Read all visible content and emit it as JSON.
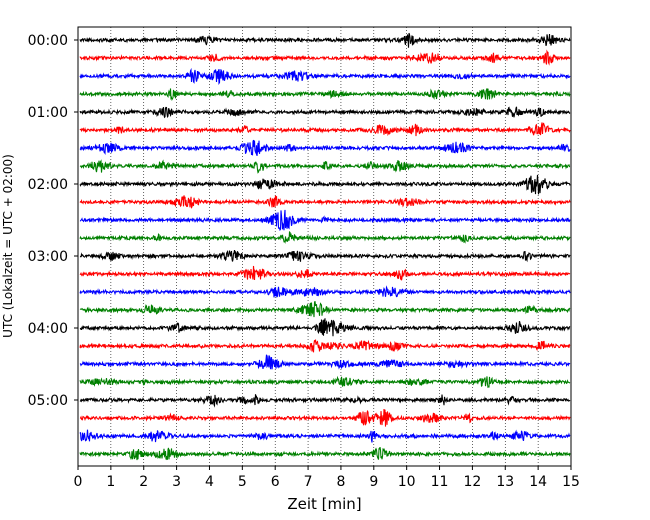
{
  "chart_data": {
    "type": "line",
    "title": "",
    "xlabel": "Zeit  [min]",
    "ylabel": "UTC (Lokalzeit = UTC + 02:00)",
    "xlim": [
      0,
      15
    ],
    "x_ticks": [
      "0",
      "1",
      "2",
      "3",
      "4",
      "5",
      "6",
      "7",
      "8",
      "9",
      "10",
      "11",
      "12",
      "13",
      "14",
      "15"
    ],
    "y_tick_labels": [
      "00:00",
      "01:00",
      "02:00",
      "03:00",
      "04:00",
      "05:00"
    ],
    "grid": "vertical-dotted",
    "minutes_per_trace": 15,
    "colors": [
      "#000000",
      "#ff0000",
      "#0000ff",
      "#008000"
    ],
    "traces": [
      {
        "start": "00:00",
        "color": "#000000"
      },
      {
        "start": "00:15",
        "color": "#ff0000"
      },
      {
        "start": "00:30",
        "color": "#0000ff"
      },
      {
        "start": "00:45",
        "color": "#008000"
      },
      {
        "start": "01:00",
        "color": "#000000"
      },
      {
        "start": "01:15",
        "color": "#ff0000"
      },
      {
        "start": "01:30",
        "color": "#0000ff"
      },
      {
        "start": "01:45",
        "color": "#008000"
      },
      {
        "start": "02:00",
        "color": "#000000"
      },
      {
        "start": "02:15",
        "color": "#ff0000"
      },
      {
        "start": "02:30",
        "color": "#0000ff"
      },
      {
        "start": "02:45",
        "color": "#008000"
      },
      {
        "start": "03:00",
        "color": "#000000"
      },
      {
        "start": "03:15",
        "color": "#ff0000"
      },
      {
        "start": "03:30",
        "color": "#0000ff"
      },
      {
        "start": "03:45",
        "color": "#008000"
      },
      {
        "start": "04:00",
        "color": "#000000"
      },
      {
        "start": "04:15",
        "color": "#ff0000"
      },
      {
        "start": "04:30",
        "color": "#0000ff"
      },
      {
        "start": "04:45",
        "color": "#008000"
      },
      {
        "start": "05:00",
        "color": "#000000"
      },
      {
        "start": "05:15",
        "color": "#ff0000"
      },
      {
        "start": "05:30",
        "color": "#0000ff"
      },
      {
        "start": "05:45",
        "color": "#008000"
      }
    ]
  }
}
